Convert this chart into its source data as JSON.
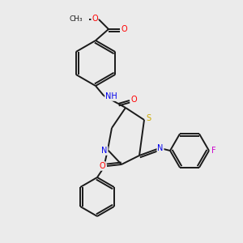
{
  "bg_color": "#ebebeb",
  "bond_color": "#1a1a1a",
  "atom_colors": {
    "O": "#ff0000",
    "N": "#0000ee",
    "S": "#ccaa00",
    "F": "#cc00cc",
    "C": "#1a1a1a",
    "H": "#4a9a9a"
  },
  "figsize": [
    3.0,
    3.0
  ],
  "dpi": 100,
  "lw": 1.4,
  "fs": 7.0,
  "fs_small": 6.5
}
